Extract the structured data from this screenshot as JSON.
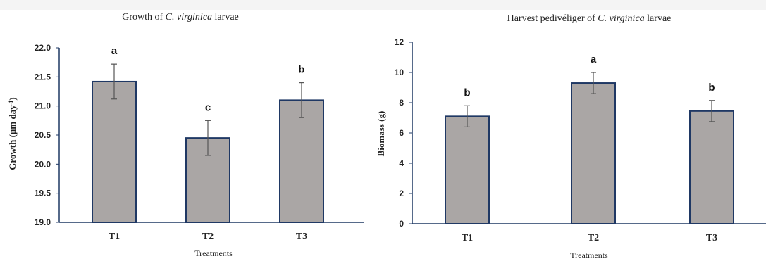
{
  "chart_data": [
    {
      "type": "bar",
      "title_parts": [
        "Growth of ",
        "C. virginica",
        " larvae"
      ],
      "xlabel": "Treatments",
      "ylabel": "Growth (µm day-1)",
      "ylabel_parts": [
        "Growth (µm day",
        "-1",
        ")"
      ],
      "categories": [
        "T1",
        "T2",
        "T3"
      ],
      "values": [
        21.42,
        20.45,
        21.1
      ],
      "errors": [
        0.3,
        0.3,
        0.3
      ],
      "significance": [
        "a",
        "c",
        "b"
      ],
      "ylim": [
        19.0,
        22.0
      ],
      "yticks": [
        "19.0",
        "19.5",
        "20.0",
        "20.5",
        "21.0",
        "21.5",
        "22.0"
      ],
      "ytick_values": [
        19.0,
        19.5,
        20.0,
        20.5,
        21.0,
        21.5,
        22.0
      ],
      "bar_color": "#aaa6a5",
      "bar_edge": "#1f3864",
      "axis_color": "#1f3864",
      "grid": false
    },
    {
      "type": "bar",
      "title_parts": [
        "Harvest pedivéliger of ",
        "C. virginica",
        " larvae"
      ],
      "xlabel": "Treatments",
      "ylabel": "Biomass (g)",
      "ylabel_parts": [
        "Biomass (g)",
        "",
        ""
      ],
      "categories": [
        "T1",
        "T2",
        "T3"
      ],
      "values": [
        7.1,
        9.3,
        7.45
      ],
      "errors": [
        0.7,
        0.7,
        0.7
      ],
      "significance": [
        "b",
        "a",
        "b"
      ],
      "ylim": [
        0,
        12
      ],
      "yticks": [
        "0",
        "2",
        "4",
        "6",
        "8",
        "10",
        "12"
      ],
      "ytick_values": [
        0,
        2,
        4,
        6,
        8,
        10,
        12
      ],
      "bar_color": "#aaa6a5",
      "bar_edge": "#1f3864",
      "axis_color": "#1f3864",
      "grid": false
    }
  ]
}
